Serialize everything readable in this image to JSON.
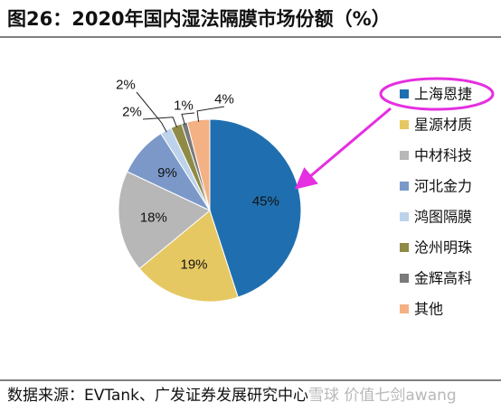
{
  "figure": {
    "title": "图26：2020年国内湿法隔膜市场份额（%）",
    "source": "数据来源：EVTank、广发证券发展研究中心",
    "watermark": "雪球 价值七剑awang"
  },
  "chart_data": {
    "type": "pie",
    "title": "图26：2020年国内湿法隔膜市场份额（%）",
    "unit": "%",
    "start_angle": "12 o'clock",
    "direction": "clockwise",
    "legend_position": "right",
    "highlighted": "上海恩捷",
    "slices": [
      {
        "name": "上海恩捷",
        "value": 45,
        "label": "45%",
        "color": "#1f6fb0"
      },
      {
        "name": "星源材质",
        "value": 19,
        "label": "19%",
        "color": "#e6c863"
      },
      {
        "name": "中材科技",
        "value": 18,
        "label": "18%",
        "color": "#b7b7b7"
      },
      {
        "name": "河北金力",
        "value": 9,
        "label": "9%",
        "color": "#7b98c9"
      },
      {
        "name": "鸿图隔膜",
        "value": 2,
        "label": "2%",
        "color": "#bdd3ec"
      },
      {
        "name": "沧州明珠",
        "value": 2,
        "label": "2%",
        "color": "#8f8a45"
      },
      {
        "name": "金辉高科",
        "value": 1,
        "label": "1%",
        "color": "#7a7a7a"
      },
      {
        "name": "其他",
        "value": 4,
        "label": "4%",
        "color": "#f4b183"
      }
    ]
  },
  "colors": {
    "highlight": "#e52fe0"
  }
}
